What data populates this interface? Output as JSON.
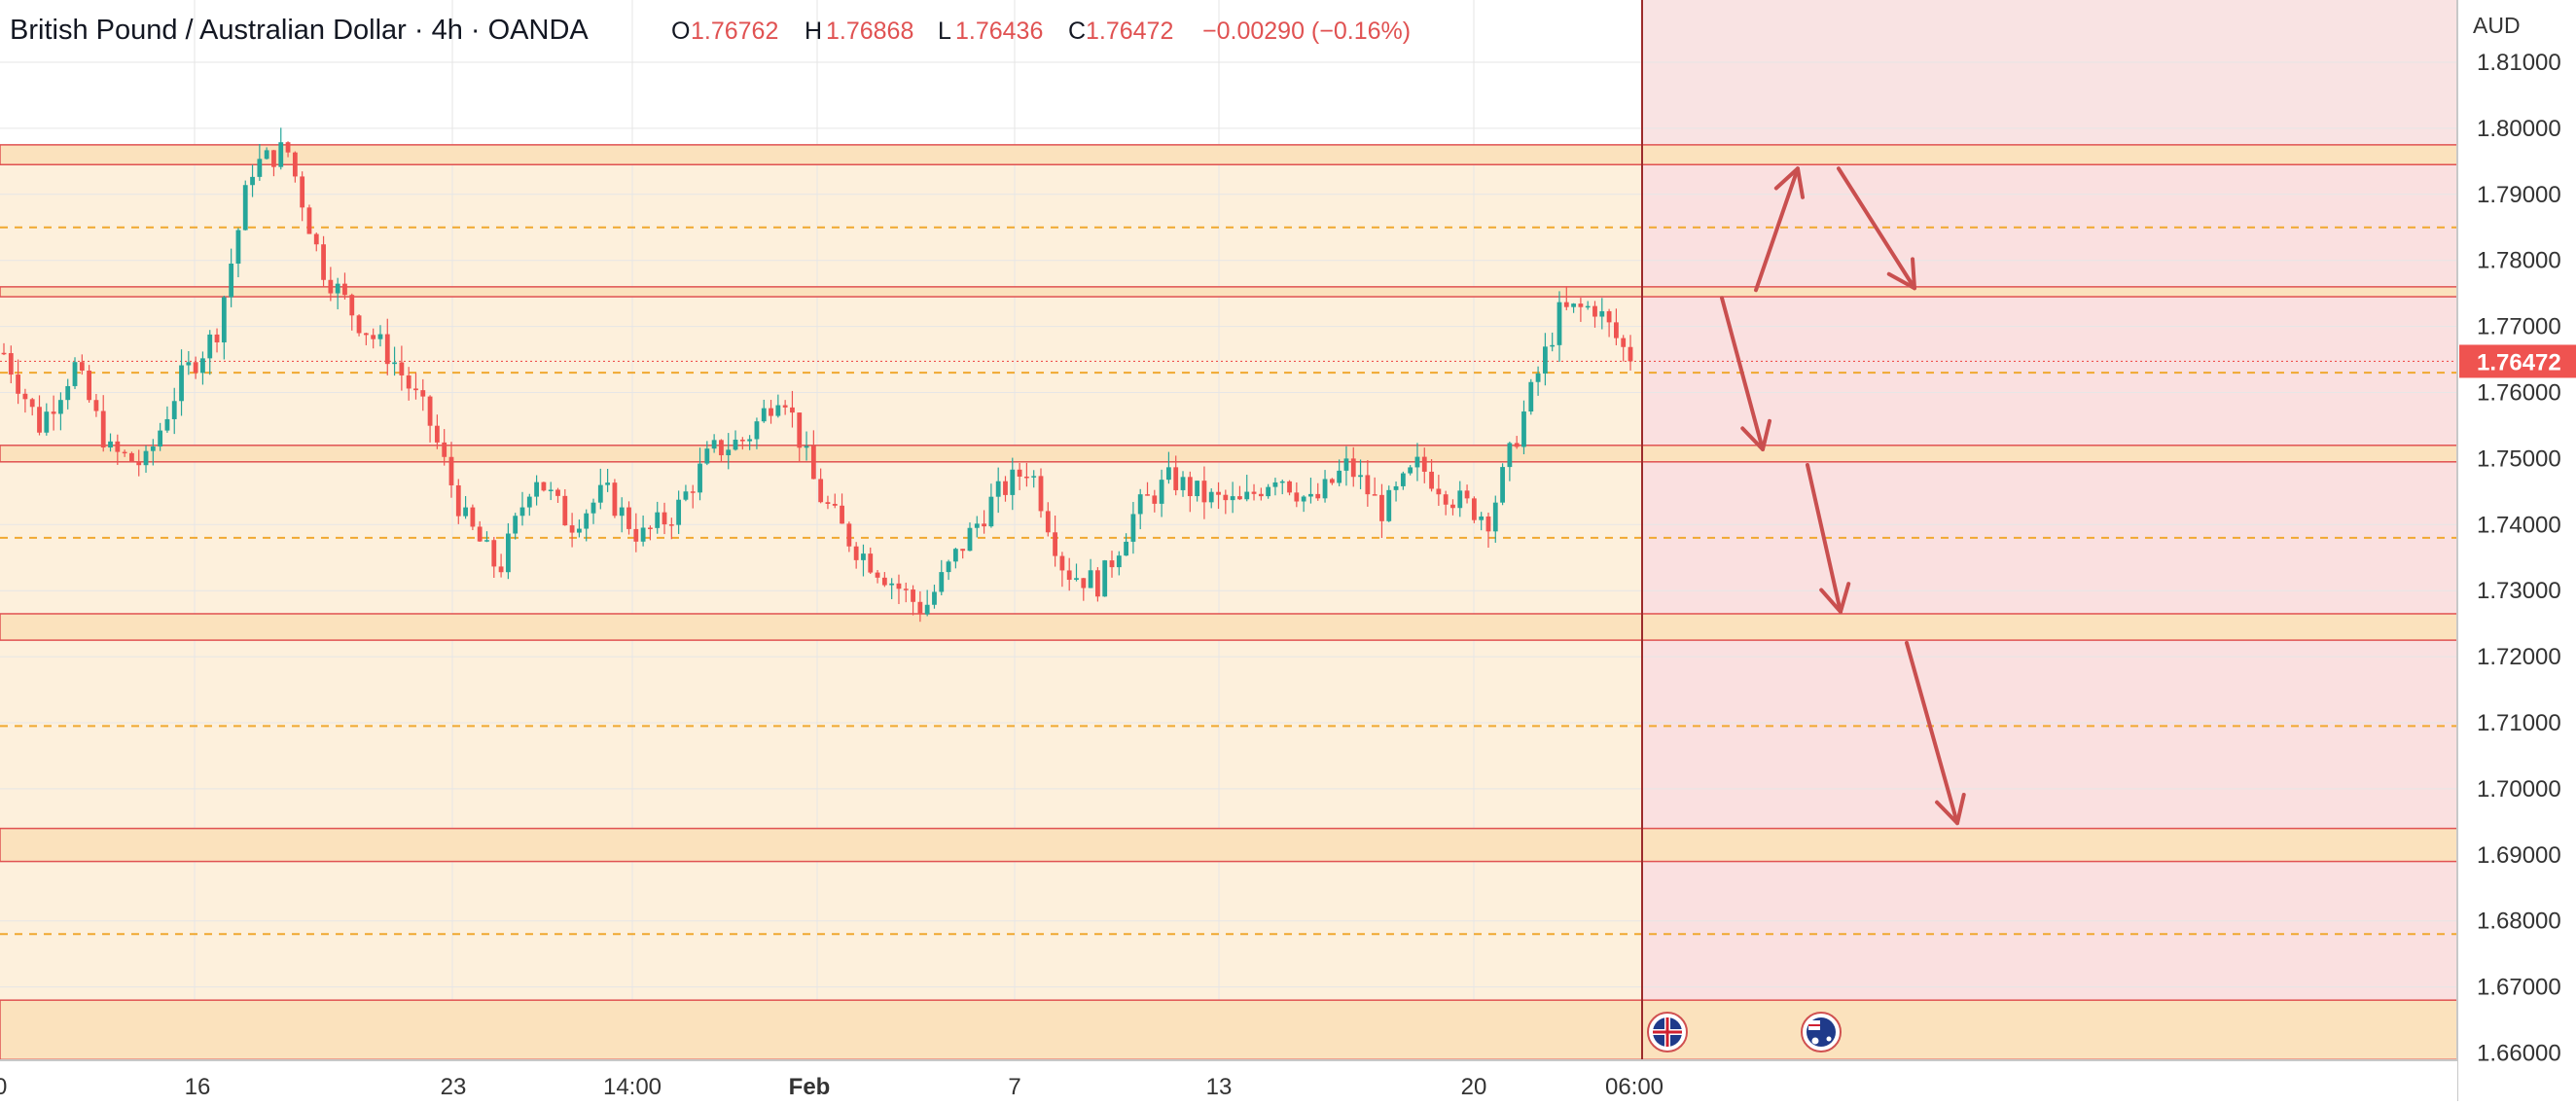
{
  "header": {
    "symbol_title": "British Pound / Australian Dollar · 4h · OANDA",
    "open_label": "O",
    "open_value": "1.76762",
    "high_label": "H",
    "high_value": "1.76868",
    "low_label": "L",
    "low_value": "1.76436",
    "close_label": "C",
    "close_value": "1.76472",
    "change": "−0.00290 (−0.16%)"
  },
  "price_axis": {
    "currency": "AUD",
    "ticks": [
      "1.81000",
      "1.80000",
      "1.79000",
      "1.78000",
      "1.77000",
      "1.76000",
      "1.75000",
      "1.74000",
      "1.73000",
      "1.72000",
      "1.71000",
      "1.70000",
      "1.69000",
      "1.68000",
      "1.67000",
      "1.66000"
    ],
    "current_price_label": "1.76472"
  },
  "time_axis": {
    "labels": [
      "0",
      "16",
      "23",
      "14:00",
      "Feb",
      "7",
      "13",
      "20",
      "06:00"
    ]
  },
  "events": [
    {
      "name": "uk-flag-icon"
    },
    {
      "name": "au-flag-icon"
    }
  ],
  "colors": {
    "up": "#26a69a",
    "down": "#ef5350",
    "zone_line": "#e05252",
    "zone_fill": "#fbe2bd",
    "dashed_level": "#f0a830",
    "projection_bg": "#f8d6d6",
    "arrow": "#c94f4f",
    "header_value": "#e05252"
  },
  "chart_data": {
    "type": "candlestick",
    "title": "British Pound / Australian Dollar · 4h · OANDA",
    "ylabel": "AUD",
    "ylim": [
      1.658,
      1.818
    ],
    "current_price": 1.76472,
    "x_ticks": [
      "0",
      "16",
      "23",
      "14:00",
      "Feb",
      "7",
      "13",
      "20",
      "06:00"
    ],
    "horizontal_zones": [
      {
        "low": 1.7945,
        "high": 1.7975
      },
      {
        "low": 1.7745,
        "high": 1.776
      },
      {
        "low": 1.7495,
        "high": 1.752
      },
      {
        "low": 1.7225,
        "high": 1.7265
      },
      {
        "low": 1.689,
        "high": 1.694
      },
      {
        "low": 1.659,
        "high": 1.668
      }
    ],
    "dashed_levels": [
      1.785,
      1.763,
      1.738,
      1.7095,
      1.678
    ],
    "projection_path": [
      1.7755,
      1.7945,
      1.7755,
      1.7505,
      1.7265,
      1.6945
    ],
    "ohlc_path": [
      1.766,
      1.755,
      1.764,
      1.751,
      1.749,
      1.762,
      1.769,
      1.794,
      1.797,
      1.779,
      1.771,
      1.765,
      1.756,
      1.741,
      1.733,
      1.748,
      1.74,
      1.745,
      1.738,
      1.742,
      1.751,
      1.753,
      1.761,
      1.745,
      1.737,
      1.732,
      1.727,
      1.736,
      1.744,
      1.749,
      1.733,
      1.731,
      1.742,
      1.747,
      1.744,
      1.743,
      1.748,
      1.743,
      1.749,
      1.742,
      1.749,
      1.744,
      1.741,
      1.757,
      1.772,
      1.773,
      1.765
    ]
  }
}
